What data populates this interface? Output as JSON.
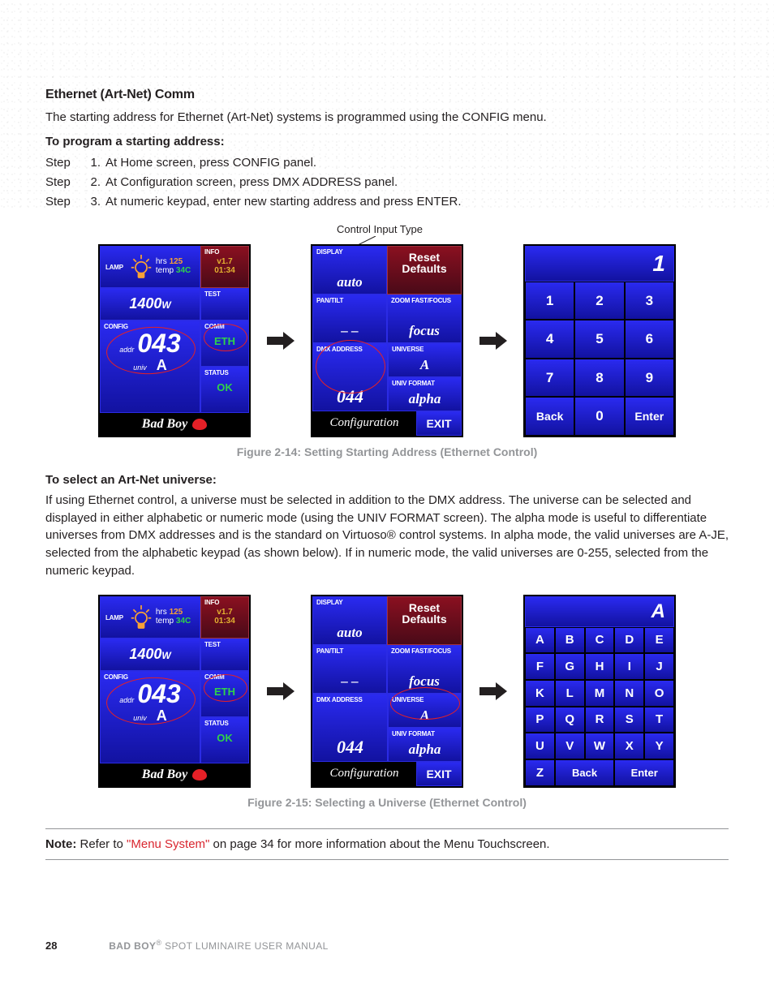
{
  "section": {
    "heading": "Ethernet (Art-Net) Comm",
    "intro": "The starting address for Ethernet (Art-Net) systems is programmed using the CONFIG menu.",
    "sub1": "To program a starting address:",
    "step1": "At Home screen, press CONFIG panel.",
    "step2": "At Configuration screen, press DMX ADDRESS panel.",
    "step3": "At numeric keypad, enter new starting address and press ENTER.",
    "callout": "Control Input Type",
    "cap1": "Figure 2-14:  Setting Starting Address (Ethernet Control)",
    "sub2": "To select an Art-Net universe:",
    "para2": "If using Ethernet control, a universe must be selected in addition to the DMX address. The universe can be selected and displayed in either alphabetic or numeric mode (using the UNIV FORMAT screen). The alpha mode is useful to differentiate universes from DMX addresses and is the standard on Virtuoso® control systems. In alpha mode, the valid universes are A-JE, selected from the alphabetic keypad (as shown below). If in numeric mode, the valid universes are 0-255, selected from the numeric keypad.",
    "cap2": "Figure 2-15:  Selecting a Universe (Ethernet Control)",
    "note_label": "Note:",
    "note_text_a": "  Refer to ",
    "note_link": "\"Menu System\"",
    "note_text_b": " on page 34 for more information about the Menu Touchscreen."
  },
  "home": {
    "lamp_label": "LAMP",
    "hrs_label": "hrs",
    "hrs": "125",
    "temp_label": "temp",
    "temp": "34C",
    "info_label": "INFO",
    "version": "v1.7",
    "time": "01:34",
    "power": "1400",
    "power_unit": "W",
    "test_label": "TEST",
    "config_label": "CONFIG",
    "addr_label": "addr",
    "addr": "043",
    "univ_label": "univ",
    "univ": "A",
    "comm_label": "COMM",
    "comm_val": "ETH",
    "status_label": "STATUS",
    "status_val": "OK",
    "brand": "Bad Boy"
  },
  "config_screen": {
    "display_label": "DISPLAY",
    "display_val": "auto",
    "reset_line1": "Reset",
    "reset_line2": "Defaults",
    "pantilt_label": "PAN/TILT",
    "pantilt_val": "– –",
    "zoom_label": "ZOOM FAST/FOCUS",
    "zoom_val": "focus",
    "dmx_label": "DMX ADDRESS",
    "dmx_val": "044",
    "universe_label": "UNIVERSE",
    "universe_val": "A",
    "univfmt_label": "UNIV FORMAT",
    "univfmt_val": "alpha",
    "footer": "Configuration",
    "exit": "EXIT"
  },
  "numpad": {
    "display": "1",
    "keys": [
      "1",
      "2",
      "3",
      "4",
      "5",
      "6",
      "7",
      "8",
      "9",
      "Back",
      "0",
      "Enter"
    ]
  },
  "alphapad": {
    "display": "A",
    "letters": [
      "A",
      "B",
      "C",
      "D",
      "E",
      "F",
      "G",
      "H",
      "I",
      "J",
      "K",
      "L",
      "M",
      "N",
      "O",
      "P",
      "Q",
      "R",
      "S",
      "T",
      "U",
      "V",
      "W",
      "X",
      "Y"
    ],
    "z": "Z",
    "back": "Back",
    "enter": "Enter"
  },
  "footer": {
    "page": "28",
    "title_a": "BAD BOY",
    "title_b": " SPOT LUMINAIRE USER MANUAL"
  },
  "colors": {
    "blue_top": "#2a2af0",
    "blue_bot": "#1212a0",
    "red_top": "#8a1020",
    "green": "#2fd24a",
    "accent_red": "#e52027"
  }
}
